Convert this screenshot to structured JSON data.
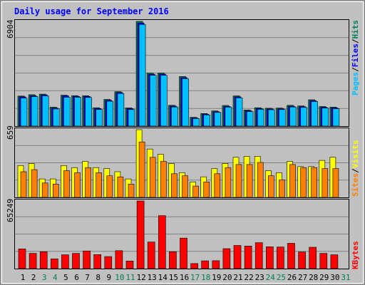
{
  "title": "Daily usage for September 2016",
  "colors": {
    "background": "#C0C0C0",
    "grid": "#808080",
    "hits": "#00805C",
    "files": "#0000FF",
    "pages": "#00C0FF",
    "visits": "#FFFF00",
    "sites": "#FF8000",
    "kbytes": "#FF0000",
    "title": "#0000FF",
    "day_normal": "#000000",
    "day_weekend": "#00805C"
  },
  "legend": {
    "top": [
      "Pages",
      "/",
      "Files",
      "/",
      "Hits"
    ],
    "middle": [
      "Sites",
      "/",
      "Visits"
    ],
    "bottom": [
      "KBytes"
    ]
  },
  "chart_data": [
    {
      "type": "bar",
      "panel": "top",
      "max_label": "6904",
      "ylim": [
        0,
        6904
      ],
      "categories": [
        "1",
        "2",
        "3",
        "4",
        "5",
        "6",
        "7",
        "8",
        "9",
        "10",
        "11",
        "12",
        "13",
        "14",
        "15",
        "16",
        "17",
        "18",
        "19",
        "20",
        "21",
        "22",
        "23",
        "24",
        "25",
        "26",
        "27",
        "28",
        "29",
        "30",
        "31"
      ],
      "series": [
        {
          "name": "Hits",
          "values": [
            1980,
            2070,
            2110,
            1250,
            2040,
            2010,
            2000,
            1210,
            1760,
            2270,
            1200,
            6904,
            3500,
            3500,
            1370,
            3270,
            580,
            830,
            1000,
            1360,
            1990,
            1060,
            1210,
            1180,
            1190,
            1370,
            1330,
            1740,
            1290,
            1250,
            0
          ]
        },
        {
          "name": "Files",
          "values": [
            1930,
            2000,
            2060,
            1190,
            1990,
            1960,
            1960,
            1160,
            1700,
            2220,
            1150,
            6800,
            3420,
            3430,
            1320,
            3200,
            540,
            790,
            950,
            1300,
            1930,
            1010,
            1160,
            1130,
            1140,
            1310,
            1280,
            1680,
            1240,
            1200,
            0
          ]
        },
        {
          "name": "Pages",
          "values": [
            1850,
            1950,
            1990,
            1130,
            1900,
            1900,
            1890,
            1100,
            1640,
            2150,
            1090,
            6700,
            3350,
            3350,
            1260,
            3130,
            500,
            740,
            900,
            1250,
            1860,
            960,
            1110,
            1080,
            1090,
            1260,
            1230,
            1620,
            1190,
            1150,
            0
          ]
        }
      ]
    },
    {
      "type": "bar",
      "panel": "middle",
      "max_label": "659",
      "ylim": [
        0,
        659
      ],
      "categories": [
        "1",
        "2",
        "3",
        "4",
        "5",
        "6",
        "7",
        "8",
        "9",
        "10",
        "11",
        "12",
        "13",
        "14",
        "15",
        "16",
        "17",
        "18",
        "19",
        "20",
        "21",
        "22",
        "23",
        "24",
        "25",
        "26",
        "27",
        "28",
        "29",
        "30",
        "31"
      ],
      "series": [
        {
          "name": "Visits",
          "values": [
            310,
            330,
            180,
            180,
            310,
            290,
            350,
            290,
            280,
            250,
            180,
            659,
            470,
            420,
            330,
            240,
            150,
            200,
            280,
            330,
            390,
            400,
            400,
            260,
            240,
            350,
            300,
            300,
            360,
            390,
            0
          ]
        },
        {
          "name": "Sites",
          "values": [
            250,
            270,
            140,
            130,
            260,
            240,
            290,
            240,
            210,
            200,
            130,
            540,
            390,
            350,
            230,
            210,
            110,
            150,
            230,
            290,
            320,
            320,
            340,
            210,
            170,
            320,
            290,
            290,
            280,
            280,
            0
          ]
        }
      ]
    },
    {
      "type": "bar",
      "panel": "bottom",
      "max_label": "65249",
      "ylim": [
        0,
        65249
      ],
      "categories": [
        "1",
        "2",
        "3",
        "4",
        "5",
        "6",
        "7",
        "8",
        "9",
        "10",
        "11",
        "12",
        "13",
        "14",
        "15",
        "16",
        "17",
        "18",
        "19",
        "20",
        "21",
        "22",
        "23",
        "24",
        "25",
        "26",
        "27",
        "28",
        "29",
        "30",
        "31"
      ],
      "series": [
        {
          "name": "KBytes",
          "values": [
            19000,
            14700,
            16300,
            9400,
            13300,
            14700,
            17000,
            13500,
            11600,
            17300,
            7300,
            65249,
            25600,
            51000,
            16300,
            29400,
            4900,
            7500,
            7600,
            19200,
            22300,
            21800,
            25000,
            21000,
            20800,
            24400,
            16000,
            20600,
            14700,
            13300,
            0
          ]
        }
      ]
    }
  ],
  "weekend_days": [
    "3",
    "4",
    "10",
    "11",
    "17",
    "18",
    "24",
    "25",
    "31"
  ]
}
